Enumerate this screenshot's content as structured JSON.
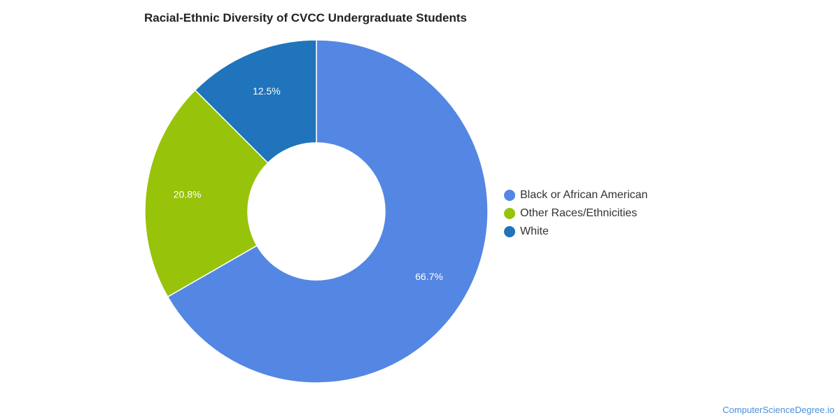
{
  "chart_data": {
    "type": "pie",
    "title": "Racial-Ethnic Diversity of CVCC Undergraduate Students",
    "categories": [
      "Black or African American",
      "Other Races/Ethnicities",
      "White"
    ],
    "values": [
      66.7,
      20.8,
      12.5
    ],
    "value_labels": [
      "66.7%",
      "20.8%",
      "12.5%"
    ],
    "colors": [
      "#5486e3",
      "#97c30a",
      "#1f74bb"
    ],
    "donut": true,
    "legend_position": "right"
  },
  "footer": {
    "credit": "ComputerScienceDegree.io"
  }
}
